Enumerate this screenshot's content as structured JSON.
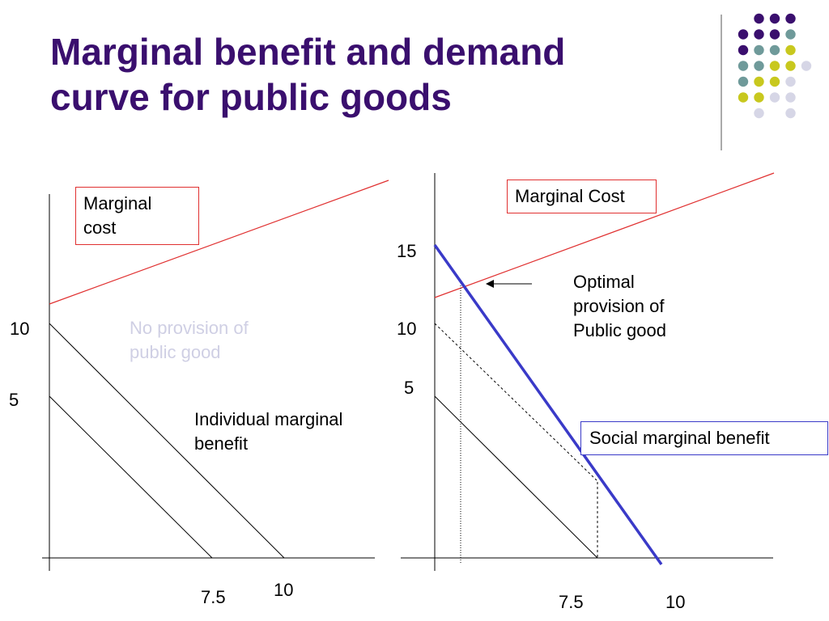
{
  "title": "Marginal benefit and demand\ncurve for public goods",
  "colors": {
    "title": "#3a0f6e",
    "marginal_cost_line": "#e03030",
    "social_benefit_line": "#3a3ac8",
    "dot_purple": "#3a0f6e",
    "dot_teal": "#6f9a9a",
    "dot_yellow": "#c8c81e",
    "dot_lavender": "#d6d6e6"
  },
  "left_panel": {
    "marginal_cost_label": "Marginal\ncost",
    "no_provision_label": "No provision of\npublic good",
    "individual_benefit_label": "Individual marginal\nbenefit",
    "y_ticks": [
      "10",
      "5"
    ],
    "x_ticks": [
      "7.5",
      "10"
    ]
  },
  "right_panel": {
    "marginal_cost_label": "Marginal Cost",
    "optimal_label": "Optimal\nprovision of\nPublic good",
    "social_benefit_label": "Social marginal benefit",
    "y_ticks": [
      "15",
      "10",
      "5"
    ],
    "x_ticks": [
      "7.5",
      "10"
    ]
  }
}
